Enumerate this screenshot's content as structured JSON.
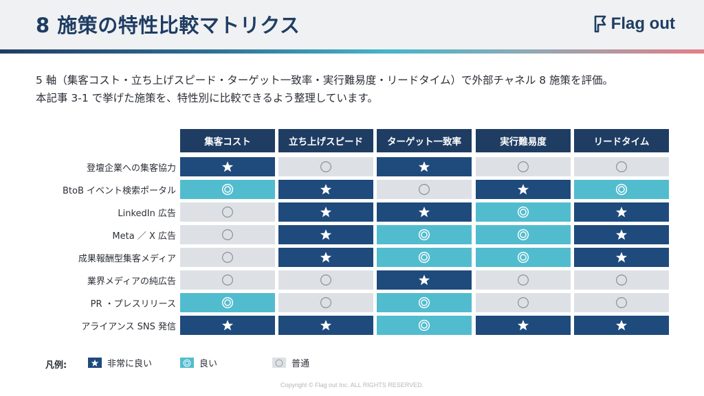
{
  "header": {
    "title": "8 施策の特性比較マトリクス",
    "logo_text": "Flag out"
  },
  "intro": {
    "line1": "5 軸（集客コスト・立ち上げスピード・ターゲット一致率・実行難易度・リードタイム）で外部チャネル 8 施策を評価。",
    "line2": "本記事 3-1 で挙げた施策を、特性別に比較できるよう整理しています。"
  },
  "matrix": {
    "columns": [
      "集客コスト",
      "立ち上げスピード",
      "ターゲット一致率",
      "実行難易度",
      "リードタイム"
    ],
    "rows": [
      {
        "label": "登壇企業への集客協力",
        "ratings": [
          "star",
          "normal",
          "star",
          "normal",
          "normal"
        ]
      },
      {
        "label": "BtoB イベント検索ポータル",
        "ratings": [
          "good",
          "star",
          "normal",
          "star",
          "good"
        ]
      },
      {
        "label": "LinkedIn 広告",
        "ratings": [
          "normal",
          "star",
          "star",
          "good",
          "star"
        ]
      },
      {
        "label": "Meta ／ X 広告",
        "ratings": [
          "normal",
          "star",
          "good",
          "good",
          "star"
        ]
      },
      {
        "label": "成果報酬型集客メディア",
        "ratings": [
          "normal",
          "star",
          "good",
          "good",
          "star"
        ]
      },
      {
        "label": "業界メディアの純広告",
        "ratings": [
          "normal",
          "normal",
          "star",
          "normal",
          "normal"
        ]
      },
      {
        "label": "PR ・プレスリリース",
        "ratings": [
          "good",
          "normal",
          "good",
          "normal",
          "normal"
        ]
      },
      {
        "label": "アライアンス SNS 発信",
        "ratings": [
          "star",
          "star",
          "good",
          "star",
          "star"
        ]
      }
    ]
  },
  "legend": {
    "title": "凡例:",
    "items": [
      {
        "key": "star",
        "label": "非常に良い"
      },
      {
        "key": "good",
        "label": "良い"
      },
      {
        "key": "normal",
        "label": "普通"
      }
    ]
  },
  "colors": {
    "navy": "#1f3d63",
    "star_cell": "#1f4a7c",
    "good_cell": "#52bccf",
    "normal_cell": "#dde1e6"
  },
  "icons": {
    "star": "star-icon",
    "good": "double-circle-icon",
    "normal": "circle-icon"
  },
  "footer": {
    "copyright": "Copyright © Flag out Inc. ALL RIGHTS RESERVED."
  }
}
